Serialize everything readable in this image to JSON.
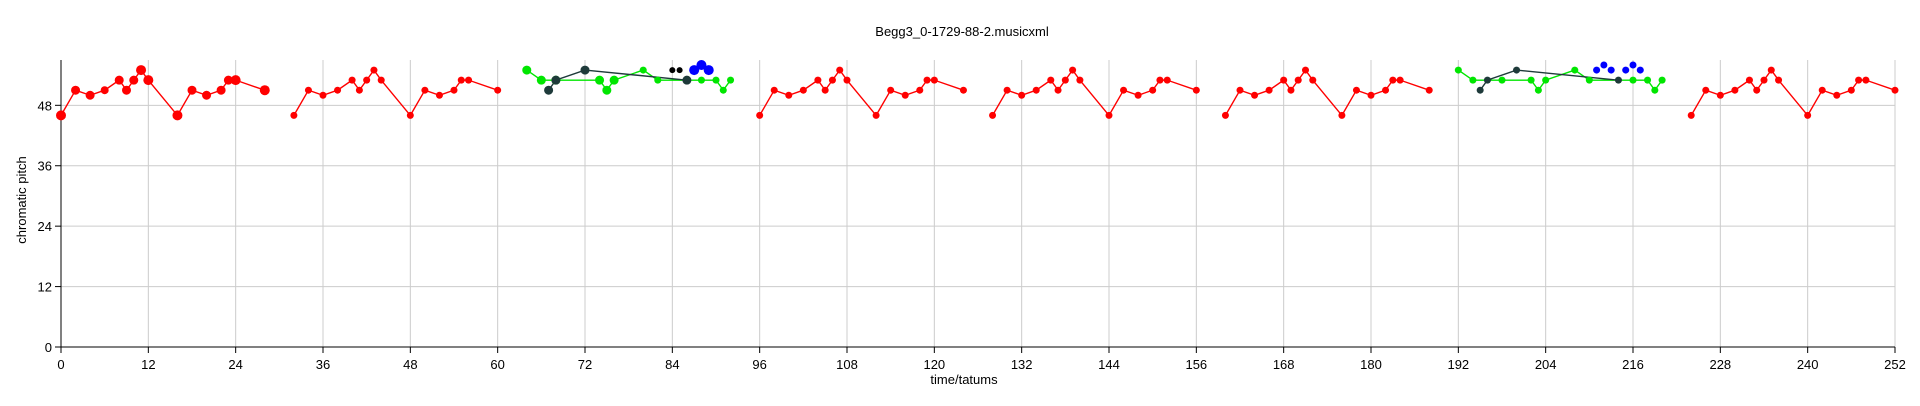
{
  "chart_data": {
    "type": "scatter",
    "title": "Begg3_0-1729-88-2.musicxml",
    "xlabel": "time/tatums",
    "ylabel": "chromatic pitch",
    "xlim": [
      0,
      252
    ],
    "ylim": [
      0,
      57
    ],
    "xticks": [
      0,
      12,
      24,
      36,
      48,
      60,
      72,
      84,
      96,
      108,
      120,
      132,
      144,
      156,
      168,
      180,
      192,
      204,
      216,
      228,
      240,
      252
    ],
    "yticks": [
      0,
      12,
      24,
      36,
      48
    ],
    "grid": true,
    "legend": "none",
    "colors": {
      "red": "#ff0000",
      "green": "#00e600",
      "blue": "#0000ff",
      "black": "#000000",
      "darkslate": "#1e3a3a",
      "grid": "#cccccc"
    },
    "series": [
      {
        "color": "#ff0000",
        "line": true,
        "segments": [
          [
            [
              0,
              46,
              5
            ],
            [
              2,
              51,
              4.5
            ],
            [
              4,
              50,
              4.5
            ],
            [
              6,
              51,
              4
            ],
            [
              8,
              53,
              4.5
            ],
            [
              9,
              51,
              4.5
            ],
            [
              10,
              53,
              4.5
            ],
            [
              11,
              55,
              5
            ],
            [
              12,
              53,
              5
            ],
            [
              16,
              46,
              5
            ],
            [
              18,
              51,
              4.5
            ],
            [
              20,
              50,
              4.5
            ],
            [
              22,
              51,
              4.5
            ],
            [
              23,
              53,
              4.5
            ],
            [
              24,
              53,
              5
            ],
            [
              28,
              51,
              5
            ]
          ],
          [
            [
              32,
              46,
              3.5
            ],
            [
              34,
              51,
              3.5
            ],
            [
              36,
              50,
              3.5
            ],
            [
              38,
              51,
              3.5
            ],
            [
              40,
              53,
              3.5
            ],
            [
              41,
              51,
              3.5
            ],
            [
              42,
              53,
              3.5
            ],
            [
              43,
              55,
              3.5
            ],
            [
              44,
              53,
              3.5
            ],
            [
              48,
              46,
              3.5
            ],
            [
              50,
              51,
              3.5
            ],
            [
              52,
              50,
              3.5
            ],
            [
              54,
              51,
              3.5
            ],
            [
              55,
              53,
              3.5
            ],
            [
              56,
              53,
              3.5
            ],
            [
              60,
              51,
              3.5
            ]
          ],
          [
            [
              96,
              46,
              3.5
            ],
            [
              98,
              51,
              3.5
            ],
            [
              100,
              50,
              3.5
            ],
            [
              102,
              51,
              3.5
            ],
            [
              104,
              53,
              3.5
            ],
            [
              105,
              51,
              3.5
            ],
            [
              106,
              53,
              3.5
            ],
            [
              107,
              55,
              3.5
            ],
            [
              108,
              53,
              3.5
            ],
            [
              112,
              46,
              3.5
            ],
            [
              114,
              51,
              3.5
            ],
            [
              116,
              50,
              3.5
            ],
            [
              118,
              51,
              3.5
            ],
            [
              119,
              53,
              3.5
            ],
            [
              120,
              53,
              3.5
            ],
            [
              124,
              51,
              3.5
            ]
          ],
          [
            [
              128,
              46,
              3.5
            ],
            [
              130,
              51,
              3.5
            ],
            [
              132,
              50,
              3.5
            ],
            [
              134,
              51,
              3.5
            ],
            [
              136,
              53,
              3.5
            ],
            [
              137,
              51,
              3.5
            ],
            [
              138,
              53,
              3.5
            ],
            [
              139,
              55,
              3.5
            ],
            [
              140,
              53,
              3.5
            ],
            [
              144,
              46,
              3.5
            ],
            [
              146,
              51,
              3.5
            ],
            [
              148,
              50,
              3.5
            ],
            [
              150,
              51,
              3.5
            ],
            [
              151,
              53,
              3.5
            ],
            [
              152,
              53,
              3.5
            ],
            [
              156,
              51,
              3.5
            ]
          ],
          [
            [
              160,
              46,
              3.5
            ],
            [
              162,
              51,
              3.5
            ],
            [
              164,
              50,
              3.5
            ],
            [
              166,
              51,
              3.5
            ],
            [
              168,
              53,
              3.5
            ],
            [
              169,
              51,
              3.5
            ],
            [
              170,
              53,
              3.5
            ],
            [
              171,
              55,
              3.5
            ],
            [
              172,
              53,
              3.5
            ],
            [
              176,
              46,
              3.5
            ],
            [
              178,
              51,
              3.5
            ],
            [
              180,
              50,
              3.5
            ],
            [
              182,
              51,
              3.5
            ],
            [
              183,
              53,
              3.5
            ],
            [
              184,
              53,
              3.5
            ],
            [
              188,
              51,
              3.5
            ]
          ],
          [
            [
              224,
              46,
              3.5
            ],
            [
              226,
              51,
              3.5
            ],
            [
              228,
              50,
              3.5
            ],
            [
              230,
              51,
              3.5
            ],
            [
              232,
              53,
              3.5
            ],
            [
              233,
              51,
              3.5
            ],
            [
              234,
              53,
              3.5
            ],
            [
              235,
              55,
              3.5
            ],
            [
              236,
              53,
              3.5
            ],
            [
              240,
              46,
              3.5
            ],
            [
              242,
              51,
              3.5
            ],
            [
              244,
              50,
              3.5
            ],
            [
              246,
              51,
              3.5
            ],
            [
              247,
              53,
              3.5
            ],
            [
              248,
              53,
              3.5
            ],
            [
              252,
              51,
              3.5
            ]
          ]
        ]
      },
      {
        "color": "#00e600",
        "line": true,
        "segments": [
          [
            [
              64,
              55,
              4.5
            ],
            [
              66,
              53,
              4.5
            ],
            [
              68,
              53,
              4.5
            ],
            [
              74,
              53,
              4.5
            ],
            [
              75,
              51,
              4.5
            ],
            [
              76,
              53,
              4.5
            ],
            [
              80,
              55,
              3.5
            ],
            [
              82,
              53,
              3.5
            ],
            [
              88,
              53,
              3.5
            ],
            [
              90,
              53,
              3.5
            ],
            [
              91,
              51,
              3.5
            ],
            [
              92,
              53,
              3.5
            ]
          ],
          [
            [
              192,
              55,
              3.5
            ],
            [
              194,
              53,
              3.5
            ],
            [
              198,
              53,
              3.5
            ],
            [
              202,
              53,
              3.5
            ],
            [
              203,
              51,
              3.5
            ],
            [
              204,
              53,
              3.5
            ],
            [
              208,
              55,
              3.5
            ],
            [
              210,
              53,
              3.5
            ],
            [
              216,
              53,
              3.5
            ],
            [
              218,
              53,
              3.5
            ],
            [
              219,
              51,
              3.5
            ],
            [
              220,
              53,
              3.5
            ]
          ]
        ]
      },
      {
        "color": "#1e3a3a",
        "line": true,
        "segments": [
          [
            [
              67,
              51,
              4.5
            ],
            [
              68,
              53,
              4.5
            ],
            [
              72,
              55,
              4.5
            ],
            [
              86,
              53,
              4.5
            ]
          ],
          [
            [
              195,
              51,
              3.5
            ],
            [
              196,
              53,
              3.5
            ],
            [
              200,
              55,
              3.5
            ],
            [
              214,
              53,
              3.5
            ]
          ]
        ]
      },
      {
        "color": "#000000",
        "line": false,
        "segments": [
          [
            [
              84,
              55,
              3
            ],
            [
              85,
              55,
              3
            ]
          ]
        ]
      },
      {
        "color": "#0000ff",
        "line": false,
        "segments": [
          [
            [
              87,
              55,
              5
            ],
            [
              88,
              56,
              5
            ],
            [
              89,
              55,
              5
            ],
            [
              211,
              55,
              3.5
            ],
            [
              212,
              56,
              3.5
            ],
            [
              213,
              55,
              3.5
            ],
            [
              215,
              55,
              3.5
            ],
            [
              216,
              56,
              3.5
            ],
            [
              217,
              55,
              3.5
            ]
          ]
        ]
      }
    ]
  }
}
